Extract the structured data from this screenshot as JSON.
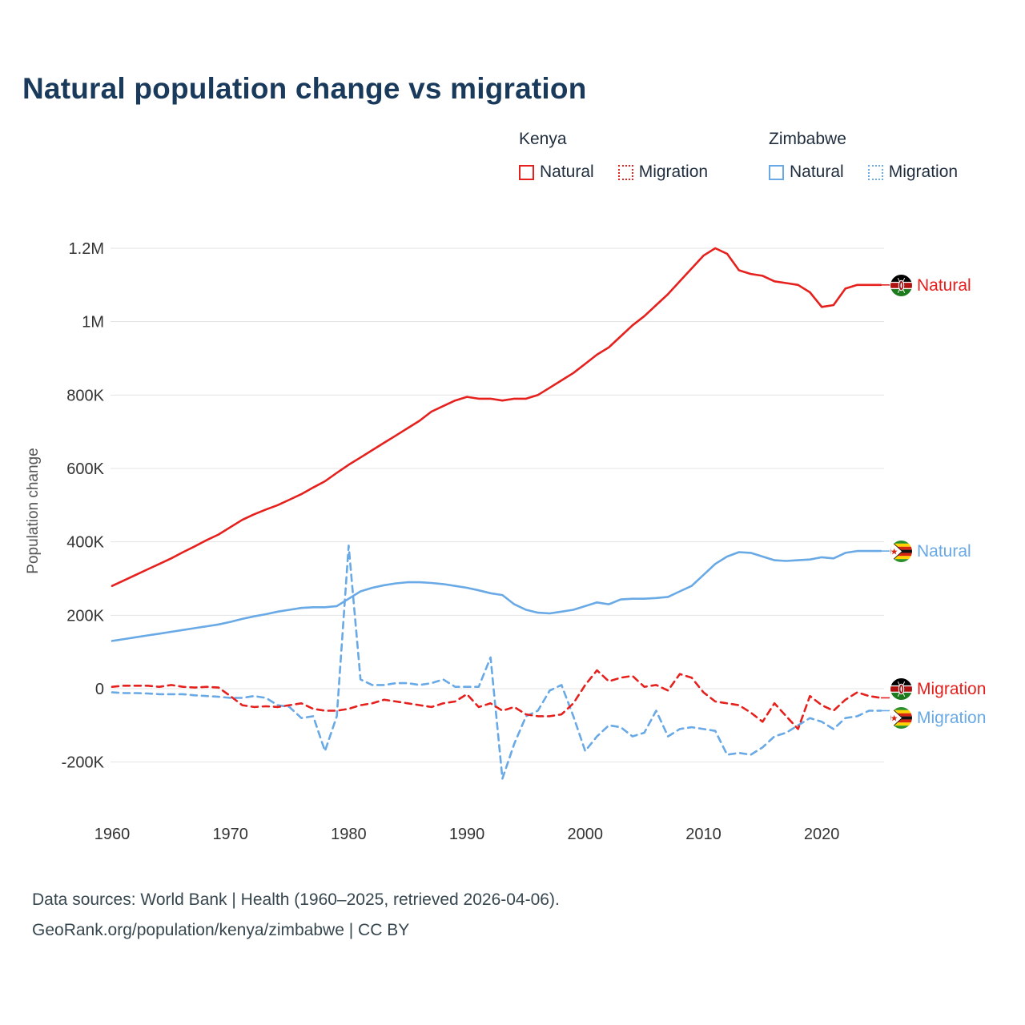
{
  "title": "Natural population change vs migration",
  "colors": {
    "kenya": "#e5201d",
    "zimbabwe": "#68a9e6",
    "title": "#1a3a5c",
    "grid": "#e3e3e3"
  },
  "legend": {
    "groups": [
      {
        "country": "Kenya",
        "items": [
          {
            "label": "Natural",
            "style": "solid"
          },
          {
            "label": "Migration",
            "style": "dotted"
          }
        ]
      },
      {
        "country": "Zimbabwe",
        "items": [
          {
            "label": "Natural",
            "style": "solid"
          },
          {
            "label": "Migration",
            "style": "dotted"
          }
        ]
      }
    ]
  },
  "ylabel": "Population change",
  "series_labels": [
    {
      "label": "Natural",
      "country": "Kenya",
      "icon": "kenya-flag-icon"
    },
    {
      "label": "Natural",
      "country": "Zimbabwe",
      "icon": "zimbabwe-flag-icon"
    },
    {
      "label": "Migration",
      "country": "Kenya",
      "icon": "kenya-flag-icon"
    },
    {
      "label": "Migration",
      "country": "Zimbabwe",
      "icon": "zimbabwe-flag-icon"
    }
  ],
  "footer": {
    "line1": "Data sources: World Bank | Health (1960–2025, retrieved 2026-04-06).",
    "line2": "GeoRank.org/population/kenya/zimbabwe | CC BY"
  },
  "chart_data": {
    "type": "line",
    "title": "Natural population change vs migration",
    "xlabel": "",
    "ylabel": "Population change",
    "units": "thousands of people",
    "grid": "horizontal",
    "ylim_k": [
      -350,
      1300
    ],
    "xticks": [
      1960,
      1970,
      1980,
      1990,
      2000,
      2010,
      2020
    ],
    "yticks": [
      {
        "value": 1200,
        "label": "1.2M"
      },
      {
        "value": 1000,
        "label": "1M"
      },
      {
        "value": 800,
        "label": "800K"
      },
      {
        "value": 600,
        "label": "600K"
      },
      {
        "value": 400,
        "label": "400K"
      },
      {
        "value": 200,
        "label": "200K"
      },
      {
        "value": 0,
        "label": "0"
      },
      {
        "value": -200,
        "label": "-200K"
      }
    ],
    "x": [
      1960,
      1961,
      1962,
      1963,
      1964,
      1965,
      1966,
      1967,
      1968,
      1969,
      1970,
      1971,
      1972,
      1973,
      1974,
      1975,
      1976,
      1977,
      1978,
      1979,
      1980,
      1981,
      1982,
      1983,
      1984,
      1985,
      1986,
      1987,
      1988,
      1989,
      1990,
      1991,
      1992,
      1993,
      1994,
      1995,
      1996,
      1997,
      1998,
      1999,
      2000,
      2001,
      2002,
      2003,
      2004,
      2005,
      2006,
      2007,
      2008,
      2009,
      2010,
      2011,
      2012,
      2013,
      2014,
      2015,
      2016,
      2017,
      2018,
      2019,
      2020,
      2021,
      2022,
      2023,
      2024,
      2025
    ],
    "series": [
      {
        "name": "Zimbabwe Migration",
        "country_key": "zimbabwe",
        "style": "dashed",
        "values_k": [
          -10,
          -12,
          -12,
          -13,
          -15,
          -15,
          -15,
          -18,
          -20,
          -22,
          -25,
          -25,
          -20,
          -25,
          -45,
          -50,
          -80,
          -75,
          -170,
          -75,
          390,
          25,
          10,
          10,
          15,
          15,
          10,
          15,
          25,
          5,
          5,
          5,
          85,
          -245,
          -150,
          -75,
          -60,
          -5,
          10,
          -75,
          -170,
          -130,
          -100,
          -105,
          -130,
          -120,
          -60,
          -130,
          -110,
          -105,
          -110,
          -115,
          -180,
          -175,
          -180,
          -160,
          -130,
          -120,
          -100,
          -80,
          -90,
          -110,
          -80,
          -75,
          -60,
          -60
        ]
      },
      {
        "name": "Kenya Migration",
        "country_key": "kenya",
        "style": "dashed",
        "values_k": [
          5,
          8,
          8,
          8,
          5,
          10,
          5,
          3,
          5,
          3,
          -20,
          -45,
          -50,
          -48,
          -50,
          -45,
          -40,
          -55,
          -60,
          -60,
          -55,
          -45,
          -40,
          -30,
          -35,
          -40,
          -45,
          -50,
          -40,
          -35,
          -15,
          -50,
          -40,
          -60,
          -50,
          -70,
          -75,
          -75,
          -70,
          -40,
          10,
          50,
          20,
          30,
          35,
          5,
          10,
          -5,
          40,
          30,
          -10,
          -35,
          -40,
          -45,
          -65,
          -90,
          -40,
          -75,
          -110,
          -20,
          -45,
          -60,
          -30,
          -10,
          -20,
          -25
        ]
      },
      {
        "name": "Zimbabwe Natural",
        "country_key": "zimbabwe",
        "style": "solid",
        "values_k": [
          130,
          135,
          140,
          145,
          150,
          155,
          160,
          165,
          170,
          175,
          182,
          190,
          197,
          203,
          210,
          215,
          220,
          222,
          222,
          225,
          245,
          265,
          275,
          282,
          287,
          290,
          290,
          288,
          285,
          280,
          275,
          268,
          260,
          255,
          230,
          215,
          207,
          205,
          210,
          215,
          225,
          235,
          230,
          243,
          245,
          245,
          247,
          250,
          265,
          280,
          310,
          340,
          360,
          372,
          370,
          360,
          350,
          348,
          350,
          352,
          358,
          355,
          370,
          375,
          375,
          375
        ]
      },
      {
        "name": "Kenya Natural",
        "country_key": "kenya",
        "style": "solid",
        "values_k": [
          280,
          295,
          310,
          325,
          340,
          355,
          372,
          388,
          405,
          420,
          440,
          460,
          475,
          488,
          500,
          515,
          530,
          548,
          565,
          588,
          610,
          630,
          650,
          670,
          690,
          710,
          730,
          755,
          770,
          785,
          795,
          790,
          790,
          785,
          790,
          790,
          800,
          820,
          840,
          860,
          885,
          910,
          930,
          960,
          990,
          1015,
          1045,
          1075,
          1110,
          1145,
          1180,
          1200,
          1185,
          1140,
          1130,
          1125,
          1110,
          1105,
          1100,
          1080,
          1040,
          1045,
          1090,
          1100,
          1100,
          1100
        ]
      }
    ],
    "legend_position": "top-right"
  }
}
